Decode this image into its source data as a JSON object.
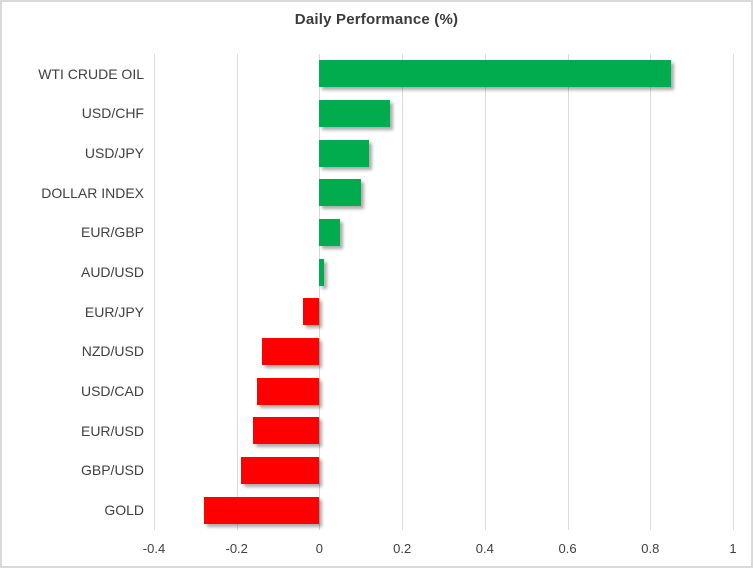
{
  "chart_data": {
    "type": "bar",
    "orientation": "horizontal",
    "title": "Daily Performance (%)",
    "categories": [
      "WTI CRUDE OIL",
      "USD/CHF",
      "USD/JPY",
      "DOLLAR INDEX",
      "EUR/GBP",
      "AUD/USD",
      "EUR/JPY",
      "NZD/USD",
      "USD/CAD",
      "EUR/USD",
      "GBP/USD",
      "GOLD"
    ],
    "values": [
      0.85,
      0.17,
      0.12,
      0.1,
      0.05,
      0.01,
      -0.04,
      -0.14,
      -0.15,
      -0.16,
      -0.19,
      -0.28
    ],
    "xlabel": "",
    "ylabel": "",
    "xlim": [
      -0.4,
      1.0
    ],
    "xticks": [
      -0.4,
      -0.2,
      0,
      0.2,
      0.4,
      0.6,
      0.8,
      1
    ],
    "xtick_labels": [
      "-0.4",
      "-0.2",
      "0",
      "0.2",
      "0.4",
      "0.6",
      "0.8",
      "1"
    ],
    "grid": "vertical",
    "legend": "none",
    "colors": {
      "positive_bar": "#00ac4e",
      "negative_bar": "#ff0000",
      "gridline": "#d9d9d9",
      "border": "#d9d9d9",
      "text": "#404040",
      "title_text": "#3b3b3b",
      "background": "#ffffff"
    }
  }
}
